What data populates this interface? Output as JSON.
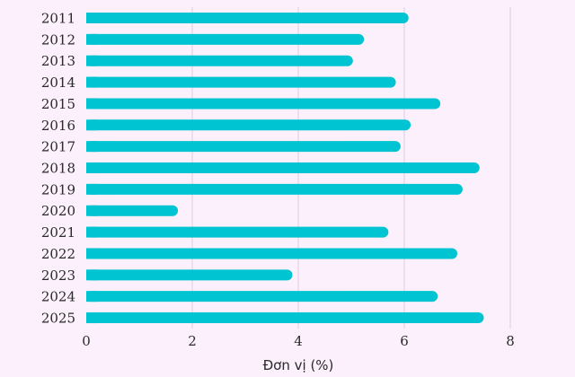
{
  "chart_data": {
    "type": "bar",
    "orientation": "horizontal",
    "categories": [
      "2011",
      "2012",
      "2013",
      "2014",
      "2015",
      "2016",
      "2017",
      "2018",
      "2019",
      "2020",
      "2021",
      "2022",
      "2023",
      "2024",
      "2025"
    ],
    "values": [
      6.08,
      5.24,
      5.03,
      5.84,
      6.68,
      6.12,
      5.93,
      7.42,
      7.1,
      1.73,
      5.7,
      7.0,
      3.89,
      6.63,
      7.5
    ],
    "title": "",
    "xlabel": "Đơn vị (%)",
    "ylabel": "",
    "xlim": [
      0,
      8
    ],
    "xticks": [
      "0",
      "2",
      "4",
      "6",
      "8"
    ],
    "grid": "vertical",
    "colors": {
      "bar": "#00c4d2",
      "grid": "#dccbe0",
      "background": "#fbf0fb"
    }
  }
}
